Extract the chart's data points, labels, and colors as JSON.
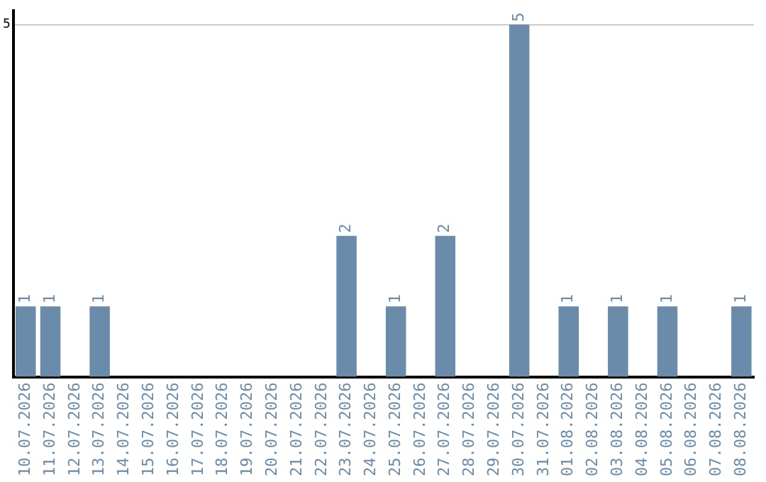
{
  "chart_data": {
    "type": "bar",
    "categories": [
      "10.07.2026",
      "11.07.2026",
      "12.07.2026",
      "13.07.2026",
      "14.07.2026",
      "15.07.2026",
      "16.07.2026",
      "17.07.2026",
      "18.07.2026",
      "19.07.2026",
      "20.07.2026",
      "21.07.2026",
      "22.07.2026",
      "23.07.2026",
      "24.07.2026",
      "25.07.2026",
      "26.07.2026",
      "27.07.2026",
      "28.07.2026",
      "29.07.2026",
      "30.07.2026",
      "31.07.2026",
      "01.08.2026",
      "02.08.2026",
      "03.08.2026",
      "04.08.2026",
      "05.08.2026",
      "06.08.2026",
      "07.08.2026",
      "08.08.2026"
    ],
    "values": [
      1,
      1,
      0,
      1,
      0,
      0,
      0,
      0,
      0,
      0,
      0,
      0,
      0,
      2,
      0,
      1,
      0,
      2,
      0,
      0,
      5,
      0,
      1,
      0,
      1,
      0,
      1,
      0,
      0,
      1
    ],
    "value_labels": [
      "1",
      "1",
      null,
      "1",
      null,
      null,
      null,
      null,
      null,
      null,
      null,
      null,
      null,
      "2",
      null,
      "1",
      null,
      "2",
      null,
      null,
      "5",
      null,
      "1",
      null,
      "1",
      null,
      "1",
      null,
      null,
      "1"
    ],
    "color": "#6a8caa",
    "ylim": [
      0,
      5.2
    ],
    "yticks": [
      5
    ],
    "grid": "y",
    "legend": false
  }
}
